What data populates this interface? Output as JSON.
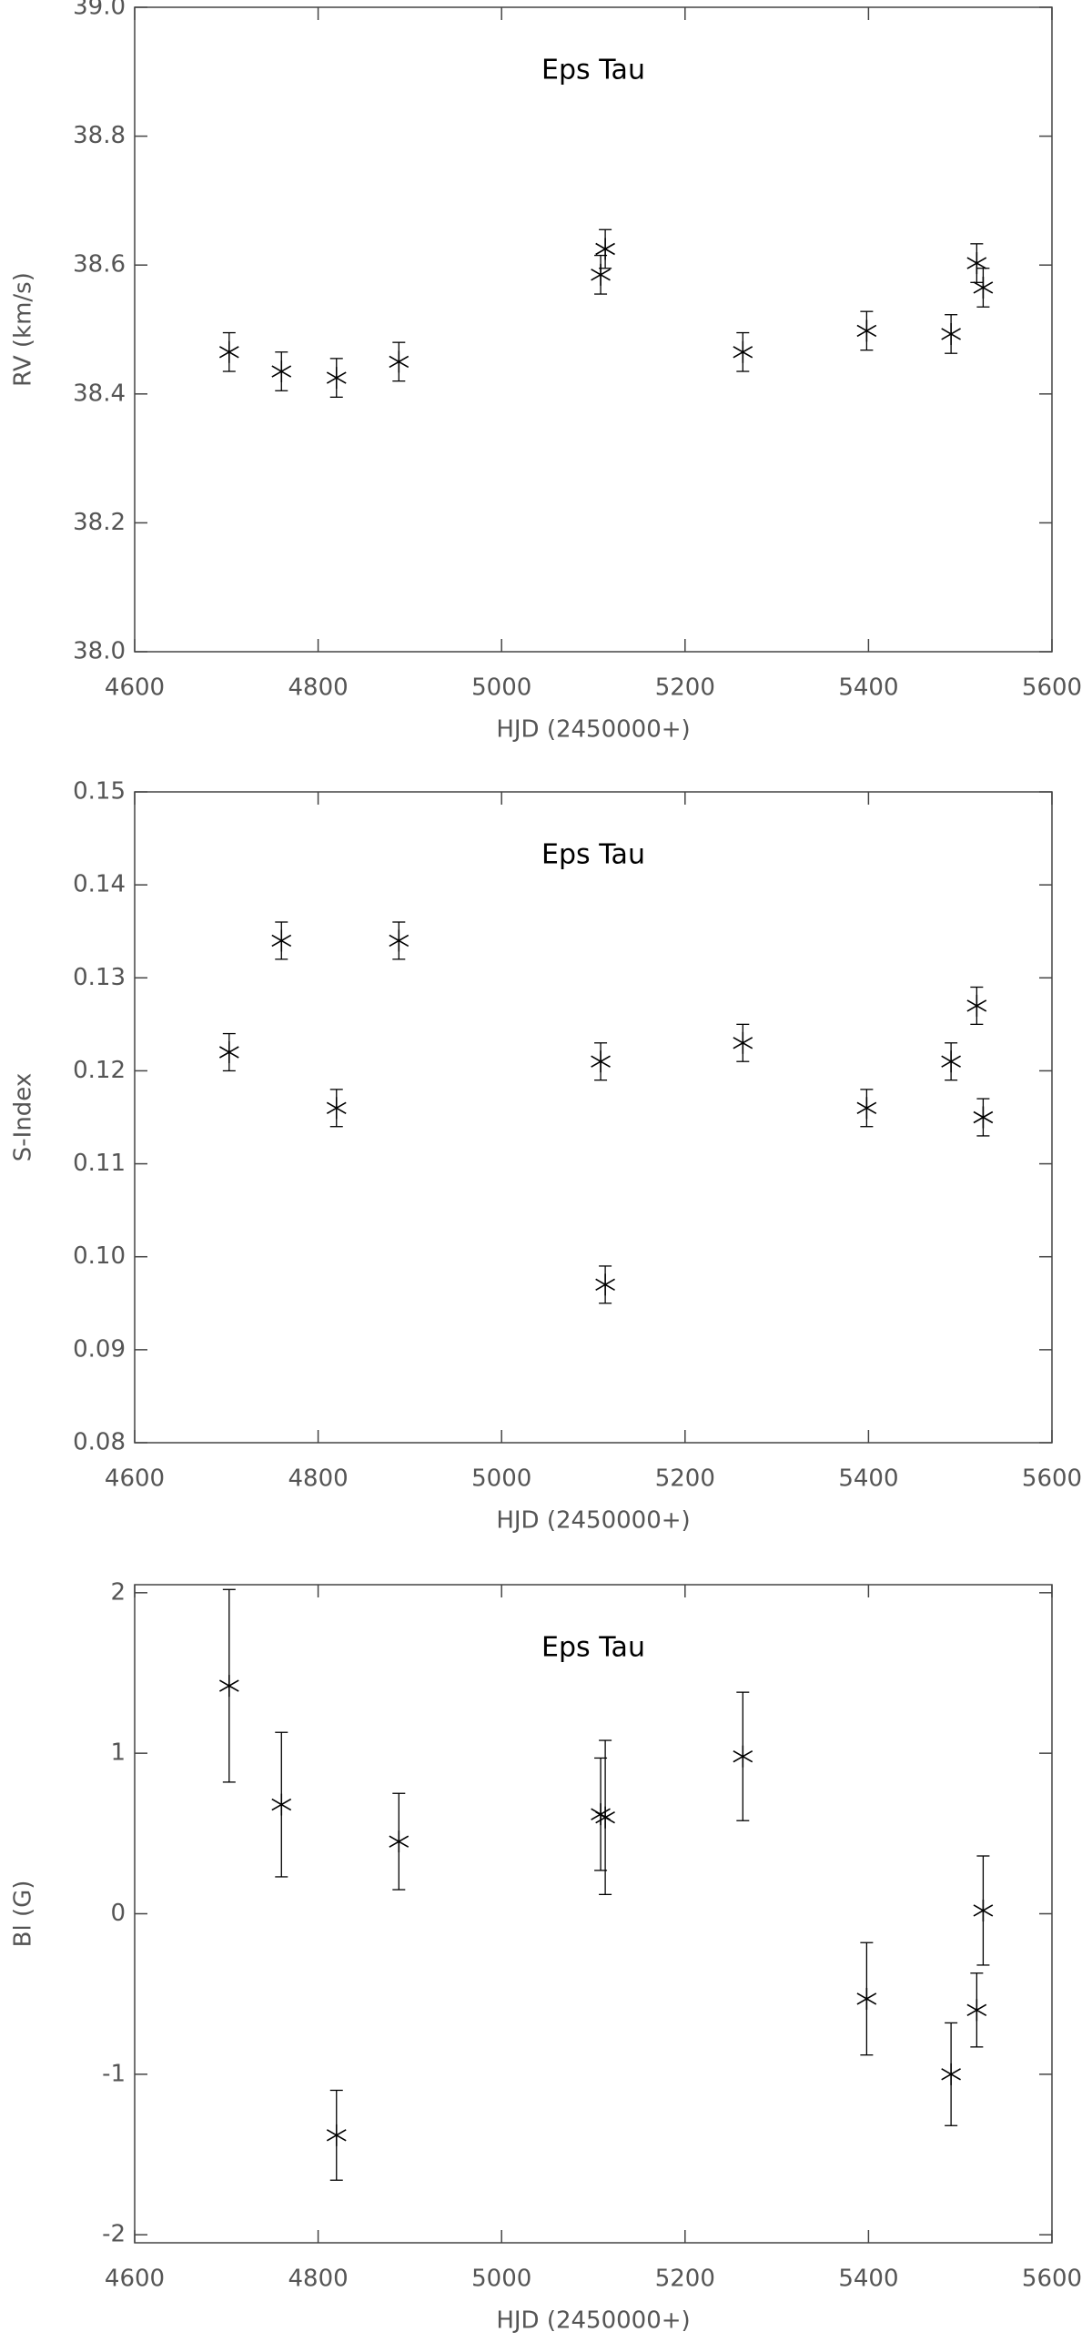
{
  "chart_data": [
    {
      "type": "scatter",
      "title": "Eps Tau",
      "x_label": "HJD (2450000+)",
      "y_label": "RV (km/s)",
      "x": [
        4703,
        4760,
        4820,
        4888,
        5108,
        5113,
        5263,
        5398,
        5490,
        5518,
        5525
      ],
      "values": [
        38.465,
        38.435,
        38.425,
        38.45,
        38.585,
        38.625,
        38.465,
        38.498,
        38.493,
        38.603,
        38.565
      ],
      "errors": [
        0.03,
        0.03,
        0.03,
        0.03,
        0.03,
        0.03,
        0.03,
        0.03,
        0.03,
        0.03,
        0.03
      ],
      "color": "#000000",
      "xlim": [
        4600,
        5600
      ],
      "ylim": [
        38.0,
        39.0
      ],
      "xticks": [
        4600,
        4800,
        5000,
        5200,
        5400,
        5600
      ],
      "yticks": [
        {
          "value": 38,
          "label": "38.0"
        },
        38.2,
        38.4,
        38.6,
        38.8,
        {
          "value": 39,
          "label": "39.0"
        }
      ]
    },
    {
      "type": "scatter",
      "title": "Eps Tau",
      "x_label": "HJD (2450000+)",
      "y_label": "S-Index",
      "x": [
        4703,
        4760,
        4820,
        4888,
        5108,
        5113,
        5263,
        5398,
        5490,
        5518,
        5525
      ],
      "values": [
        0.122,
        0.134,
        0.116,
        0.134,
        0.121,
        0.097,
        0.123,
        0.116,
        0.121,
        0.127,
        0.115
      ],
      "errors": [
        0.002,
        0.002,
        0.002,
        0.002,
        0.002,
        0.002,
        0.002,
        0.002,
        0.002,
        0.002,
        0.002
      ],
      "color": "#000000",
      "xlim": [
        4600,
        5600
      ],
      "ylim": [
        0.08,
        0.15
      ],
      "xticks": [
        4600,
        4800,
        5000,
        5200,
        5400,
        5600
      ],
      "yticks": [
        0.08,
        0.09,
        {
          "value": 0.1,
          "label": "0.10"
        },
        0.11,
        0.12,
        0.13,
        0.14,
        0.15
      ]
    },
    {
      "type": "scatter",
      "title": "Eps Tau",
      "x_label": "HJD (2450000+)",
      "y_label": "Bl (G)",
      "x": [
        4703,
        4760,
        4820,
        4888,
        5108,
        5113,
        5263,
        5398,
        5490,
        5518,
        5525
      ],
      "values": [
        1.42,
        0.68,
        -1.38,
        0.45,
        0.62,
        0.6,
        0.98,
        -0.53,
        -1.0,
        -0.6,
        0.02
      ],
      "errors": [
        0.6,
        0.45,
        0.28,
        0.3,
        0.35,
        0.48,
        0.4,
        0.35,
        0.32,
        0.23,
        0.34
      ],
      "color": "#000000",
      "xlim": [
        4600,
        5600
      ],
      "ylim": [
        -2.05,
        2.05
      ],
      "xticks": [
        4600,
        4800,
        5000,
        5200,
        5400,
        5600
      ],
      "yticks": [
        -2,
        -1,
        0,
        1,
        2
      ]
    }
  ]
}
